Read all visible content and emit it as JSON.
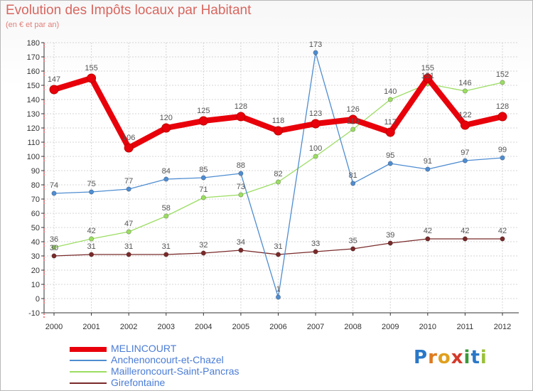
{
  "title": "Evolution des Impôts locaux par Habitant",
  "subtitle": "(en € et par an)",
  "brand": {
    "text": "Proxiti",
    "letters": [
      "P",
      "r",
      "o",
      "x",
      "i",
      "t",
      "i"
    ],
    "colors": [
      "#2a78c8",
      "#e07a1e",
      "#e0a01e",
      "#d43a2a",
      "#3a9a3a",
      "#2a78c8",
      "#9ac03a"
    ]
  },
  "chart_data": {
    "type": "line",
    "title": "Evolution des Impôts locaux par Habitant",
    "subtitle": "(en € et par an)",
    "xlabel": "",
    "ylabel": "",
    "categories": [
      "2000",
      "2001",
      "2002",
      "2003",
      "2004",
      "2005",
      "2006",
      "2007",
      "2008",
      "2009",
      "2010",
      "2011",
      "2012"
    ],
    "ylim": [
      -10,
      180
    ],
    "yticks": [
      -10,
      0,
      10,
      20,
      30,
      40,
      50,
      60,
      70,
      80,
      90,
      100,
      110,
      120,
      130,
      140,
      150,
      160,
      170,
      180
    ],
    "grid": true,
    "legend_position": "bottom-left",
    "series": [
      {
        "name": "MELINCOURT",
        "color": "#e8000a",
        "values": [
          147,
          155,
          106,
          120,
          125,
          128,
          118,
          123,
          126,
          117,
          155,
          122,
          128
        ]
      },
      {
        "name": "Anchenoncourt-et-Chazel",
        "color": "#4f8dd1",
        "values": [
          74,
          75,
          77,
          84,
          85,
          88,
          1,
          173,
          81,
          95,
          91,
          97,
          99
        ]
      },
      {
        "name": "Mailleroncourt-Saint-Pancras",
        "color": "#9bdd62",
        "values": [
          36,
          42,
          47,
          58,
          71,
          73,
          82,
          100,
          119,
          140,
          151,
          146,
          152
        ]
      },
      {
        "name": "Girefontaine",
        "color": "#7a2a2a",
        "values": [
          30,
          31,
          31,
          31,
          32,
          34,
          31,
          33,
          35,
          39,
          42,
          42,
          42
        ]
      }
    ]
  }
}
